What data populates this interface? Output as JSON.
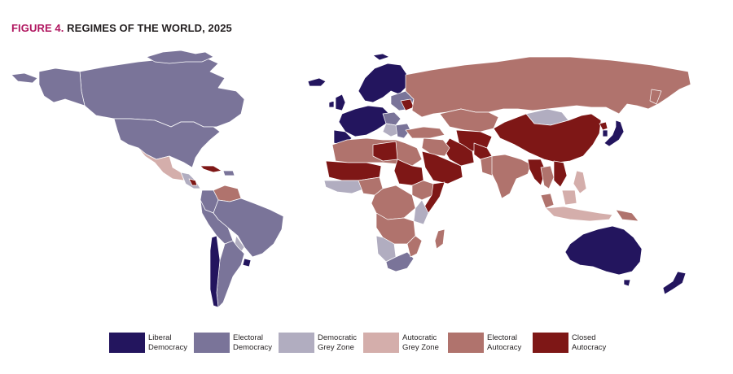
{
  "figure": {
    "label": "FIGURE 4.",
    "title": " REGIMES OF THE WORLD, 2025",
    "label_color": "#b0155f",
    "title_color": "#231f20"
  },
  "map": {
    "background": "#ffffff",
    "no_data_color": "#ffffff",
    "border_color": "#ffffff"
  },
  "legend": [
    {
      "key": "liberal_democracy",
      "label": "Liberal\nDemocracy",
      "color": "#23155e"
    },
    {
      "key": "electoral_democracy",
      "label": "Electoral\nDemocracy",
      "color": "#7a7499"
    },
    {
      "key": "democratic_grey_zone",
      "label": "Democratic\nGrey Zone",
      "color": "#b1adc0"
    },
    {
      "key": "autocratic_grey_zone",
      "label": "Autocratic\nGrey Zone",
      "color": "#d4aeab"
    },
    {
      "key": "electoral_autocracy",
      "label": "Electoral\nAutocracy",
      "color": "#b0736d"
    },
    {
      "key": "closed_autocracy",
      "label": "Closed\nAutocracy",
      "color": "#7e1716"
    }
  ]
}
